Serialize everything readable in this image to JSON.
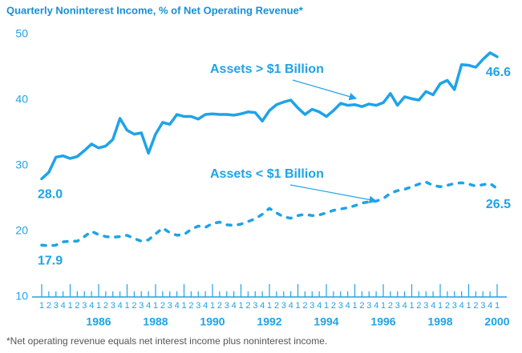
{
  "chart_data": {
    "type": "line",
    "title": "Quarterly Noninterest Income, % of Net Operating Revenue*",
    "footnote": "*Net operating revenue equals net interest income plus noninterest income.",
    "x": [
      1984,
      1984.25,
      1984.5,
      1984.75,
      1985,
      1985.25,
      1985.5,
      1985.75,
      1986,
      1986.25,
      1986.5,
      1986.75,
      1987,
      1987.25,
      1987.5,
      1987.75,
      1988,
      1988.25,
      1988.5,
      1988.75,
      1989,
      1989.25,
      1989.5,
      1989.75,
      1990,
      1990.25,
      1990.5,
      1990.75,
      1991,
      1991.25,
      1991.5,
      1991.75,
      1992,
      1992.25,
      1992.5,
      1992.75,
      1993,
      1993.25,
      1993.5,
      1993.75,
      1994,
      1994.25,
      1994.5,
      1994.75,
      1995,
      1995.25,
      1995.5,
      1995.75,
      1996,
      1996.25,
      1996.5,
      1996.75,
      1997,
      1997.25,
      1997.5,
      1997.75,
      1998,
      1998.25,
      1998.5,
      1998.75,
      1999,
      1999.25,
      1999.5,
      1999.75,
      2000
    ],
    "quarter_labels": [
      1,
      2,
      3,
      4,
      1,
      2,
      3,
      4,
      1,
      2,
      3,
      4,
      1,
      2,
      3,
      4,
      1,
      2,
      3,
      4,
      1,
      2,
      3,
      4,
      1,
      2,
      3,
      4,
      1,
      2,
      3,
      4,
      1,
      2,
      3,
      4,
      1,
      2,
      3,
      4,
      1,
      2,
      3,
      4,
      1,
      2,
      3,
      4,
      1,
      2,
      3,
      4,
      1,
      2,
      3,
      4,
      1,
      2,
      3,
      4,
      1,
      2,
      3,
      4,
      1
    ],
    "xlim": [
      1984,
      2000
    ],
    "xticks": [
      1986,
      1988,
      1990,
      1992,
      1994,
      1996,
      1998,
      2000
    ],
    "ylim": [
      10,
      50
    ],
    "yticks": [
      10,
      20,
      30,
      40,
      50
    ],
    "series": [
      {
        "name": "Assets > $1 Billion",
        "color": "#1fa3e6",
        "style": "solid",
        "values": [
          28.0,
          29.0,
          31.3,
          31.5,
          31.1,
          31.4,
          32.3,
          33.3,
          32.7,
          33.0,
          34.0,
          37.2,
          35.4,
          34.8,
          35.0,
          31.9,
          34.8,
          36.6,
          36.3,
          37.8,
          37.5,
          37.5,
          37.1,
          37.8,
          37.9,
          37.8,
          37.8,
          37.7,
          37.9,
          38.2,
          38.1,
          36.8,
          38.4,
          39.3,
          39.7,
          40.0,
          38.8,
          37.8,
          38.6,
          38.2,
          37.5,
          38.4,
          39.5,
          39.2,
          39.3,
          39.0,
          39.4,
          39.2,
          39.6,
          41.0,
          39.2,
          40.5,
          40.2,
          40.0,
          41.3,
          40.8,
          42.5,
          43.0,
          41.6,
          45.4,
          45.3,
          45.0,
          46.2,
          47.2,
          46.6
        ],
        "value_labels": [
          "28.0",
          null,
          null,
          null,
          null,
          null,
          null,
          null,
          null,
          null,
          null,
          null,
          null,
          null,
          null,
          null,
          null,
          null,
          null,
          null,
          null,
          null,
          null,
          null,
          null,
          null,
          null,
          null,
          null,
          null,
          null,
          null,
          null,
          null,
          null,
          null,
          null,
          null,
          null,
          null,
          null,
          null,
          null,
          null,
          null,
          null,
          null,
          null,
          null,
          null,
          null,
          null,
          null,
          null,
          null,
          null,
          null,
          null,
          null,
          null,
          null,
          null,
          null,
          null,
          "46.6"
        ]
      },
      {
        "name": "Assets < $1 Billion",
        "color": "#1fa3e6",
        "style": "dotted",
        "values": [
          17.9,
          17.8,
          17.9,
          18.4,
          18.5,
          18.5,
          19.2,
          20.0,
          19.5,
          19.2,
          19.1,
          19.2,
          19.4,
          18.9,
          18.5,
          18.7,
          19.6,
          20.5,
          19.8,
          19.4,
          19.5,
          20.3,
          20.8,
          20.6,
          21.2,
          21.4,
          21.0,
          20.9,
          21.1,
          21.5,
          21.9,
          22.6,
          23.5,
          22.8,
          22.2,
          22.0,
          22.4,
          22.6,
          22.4,
          22.5,
          22.8,
          23.2,
          23.4,
          23.6,
          23.9,
          24.3,
          24.5,
          24.6,
          25.0,
          25.8,
          26.2,
          26.4,
          26.8,
          27.2,
          27.5,
          27.0,
          26.8,
          27.0,
          27.3,
          27.4,
          27.2,
          26.9,
          27.1,
          27.3,
          26.5
        ]
      }
    ]
  }
}
